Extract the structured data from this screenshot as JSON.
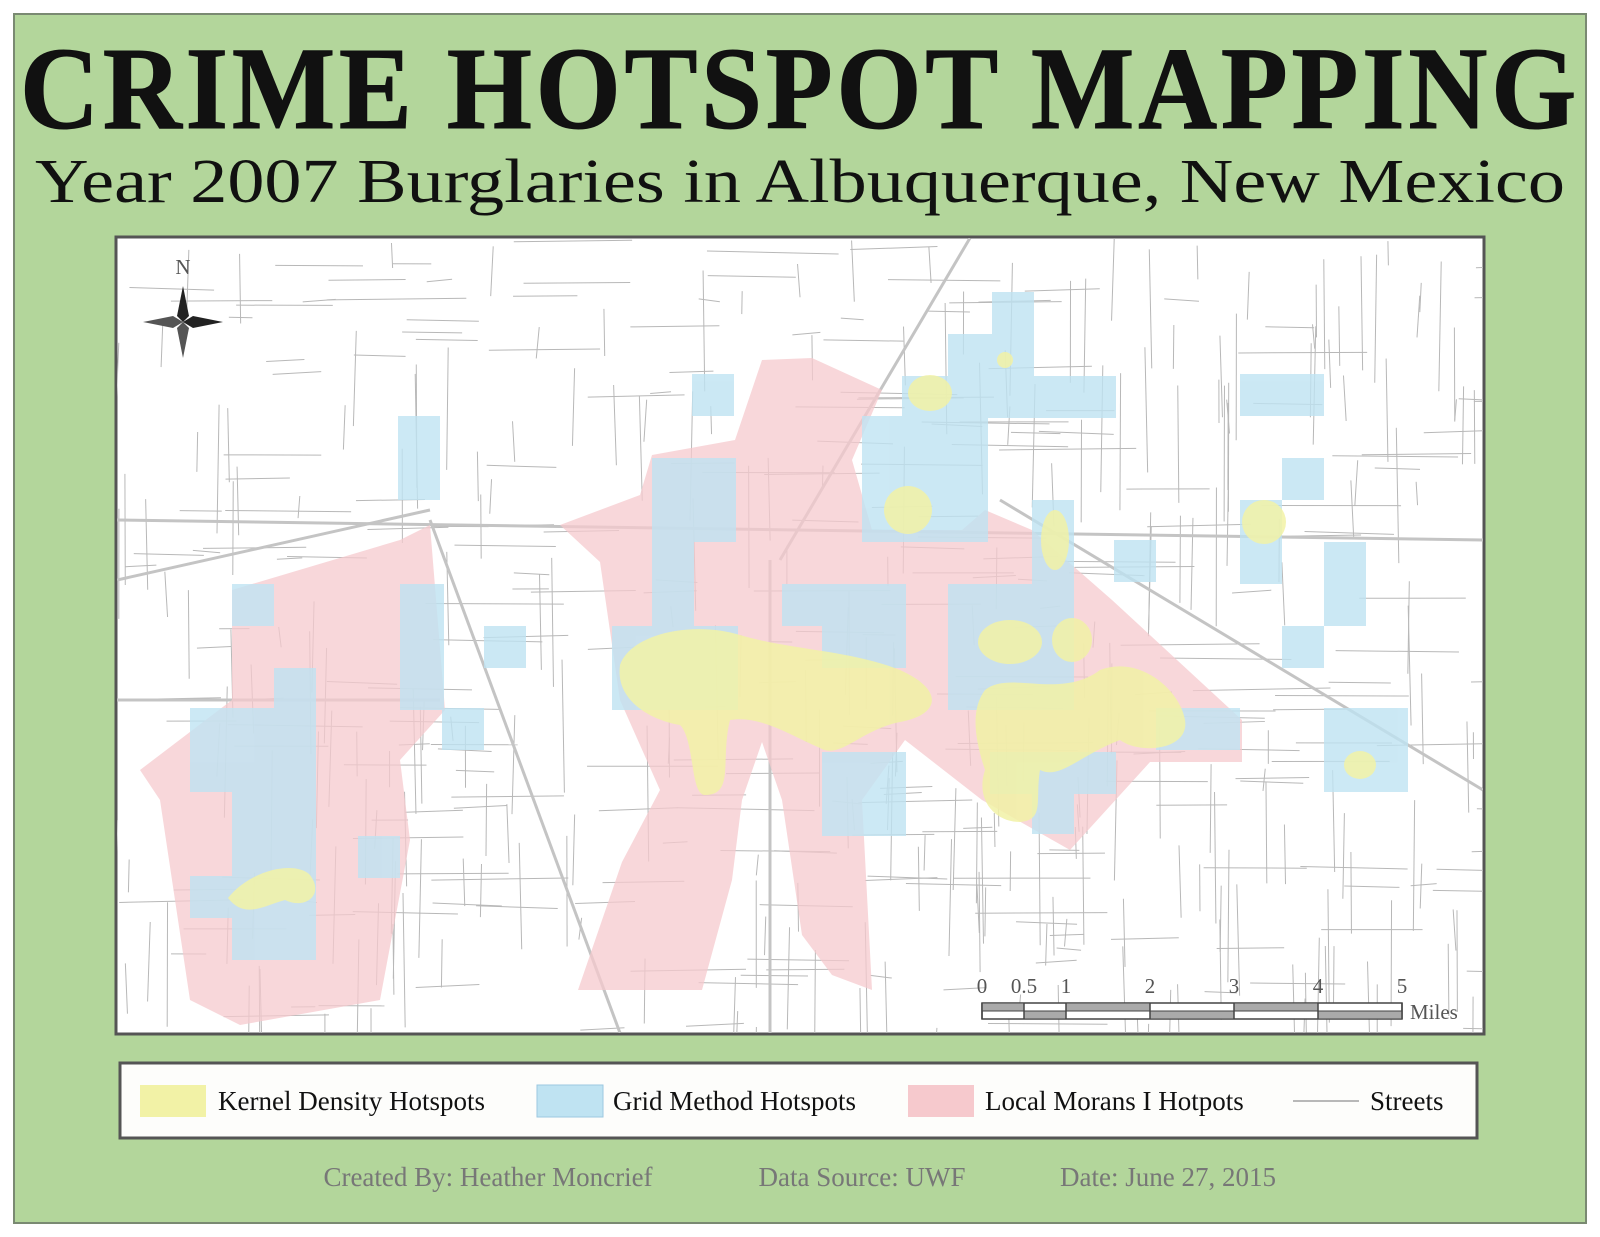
{
  "header": {
    "title": "CRIME HOTSPOT MAPPING",
    "subtitle": "Year 2007 Burglaries in Albuquerque, New Mexico"
  },
  "map": {
    "north_label": "N",
    "scale_bar": {
      "ticks": [
        0,
        0.5,
        1,
        2,
        3,
        4,
        5
      ],
      "unit": "Miles"
    }
  },
  "legend": {
    "items": [
      {
        "label": "Kernel Density Hotspots",
        "color": "#f2f2a6"
      },
      {
        "label": "Grid Method Hotspots",
        "color": "#bfe3f2"
      },
      {
        "label": "Local Morans I Hotpots",
        "color": "#f6c9cd"
      },
      {
        "label": "Streets",
        "color": "#b8b8b8"
      }
    ]
  },
  "footer": {
    "created_by": "Created By: Heather Moncrief",
    "data_source": "Data Source: UWF",
    "date": "Date: June 27, 2015"
  }
}
